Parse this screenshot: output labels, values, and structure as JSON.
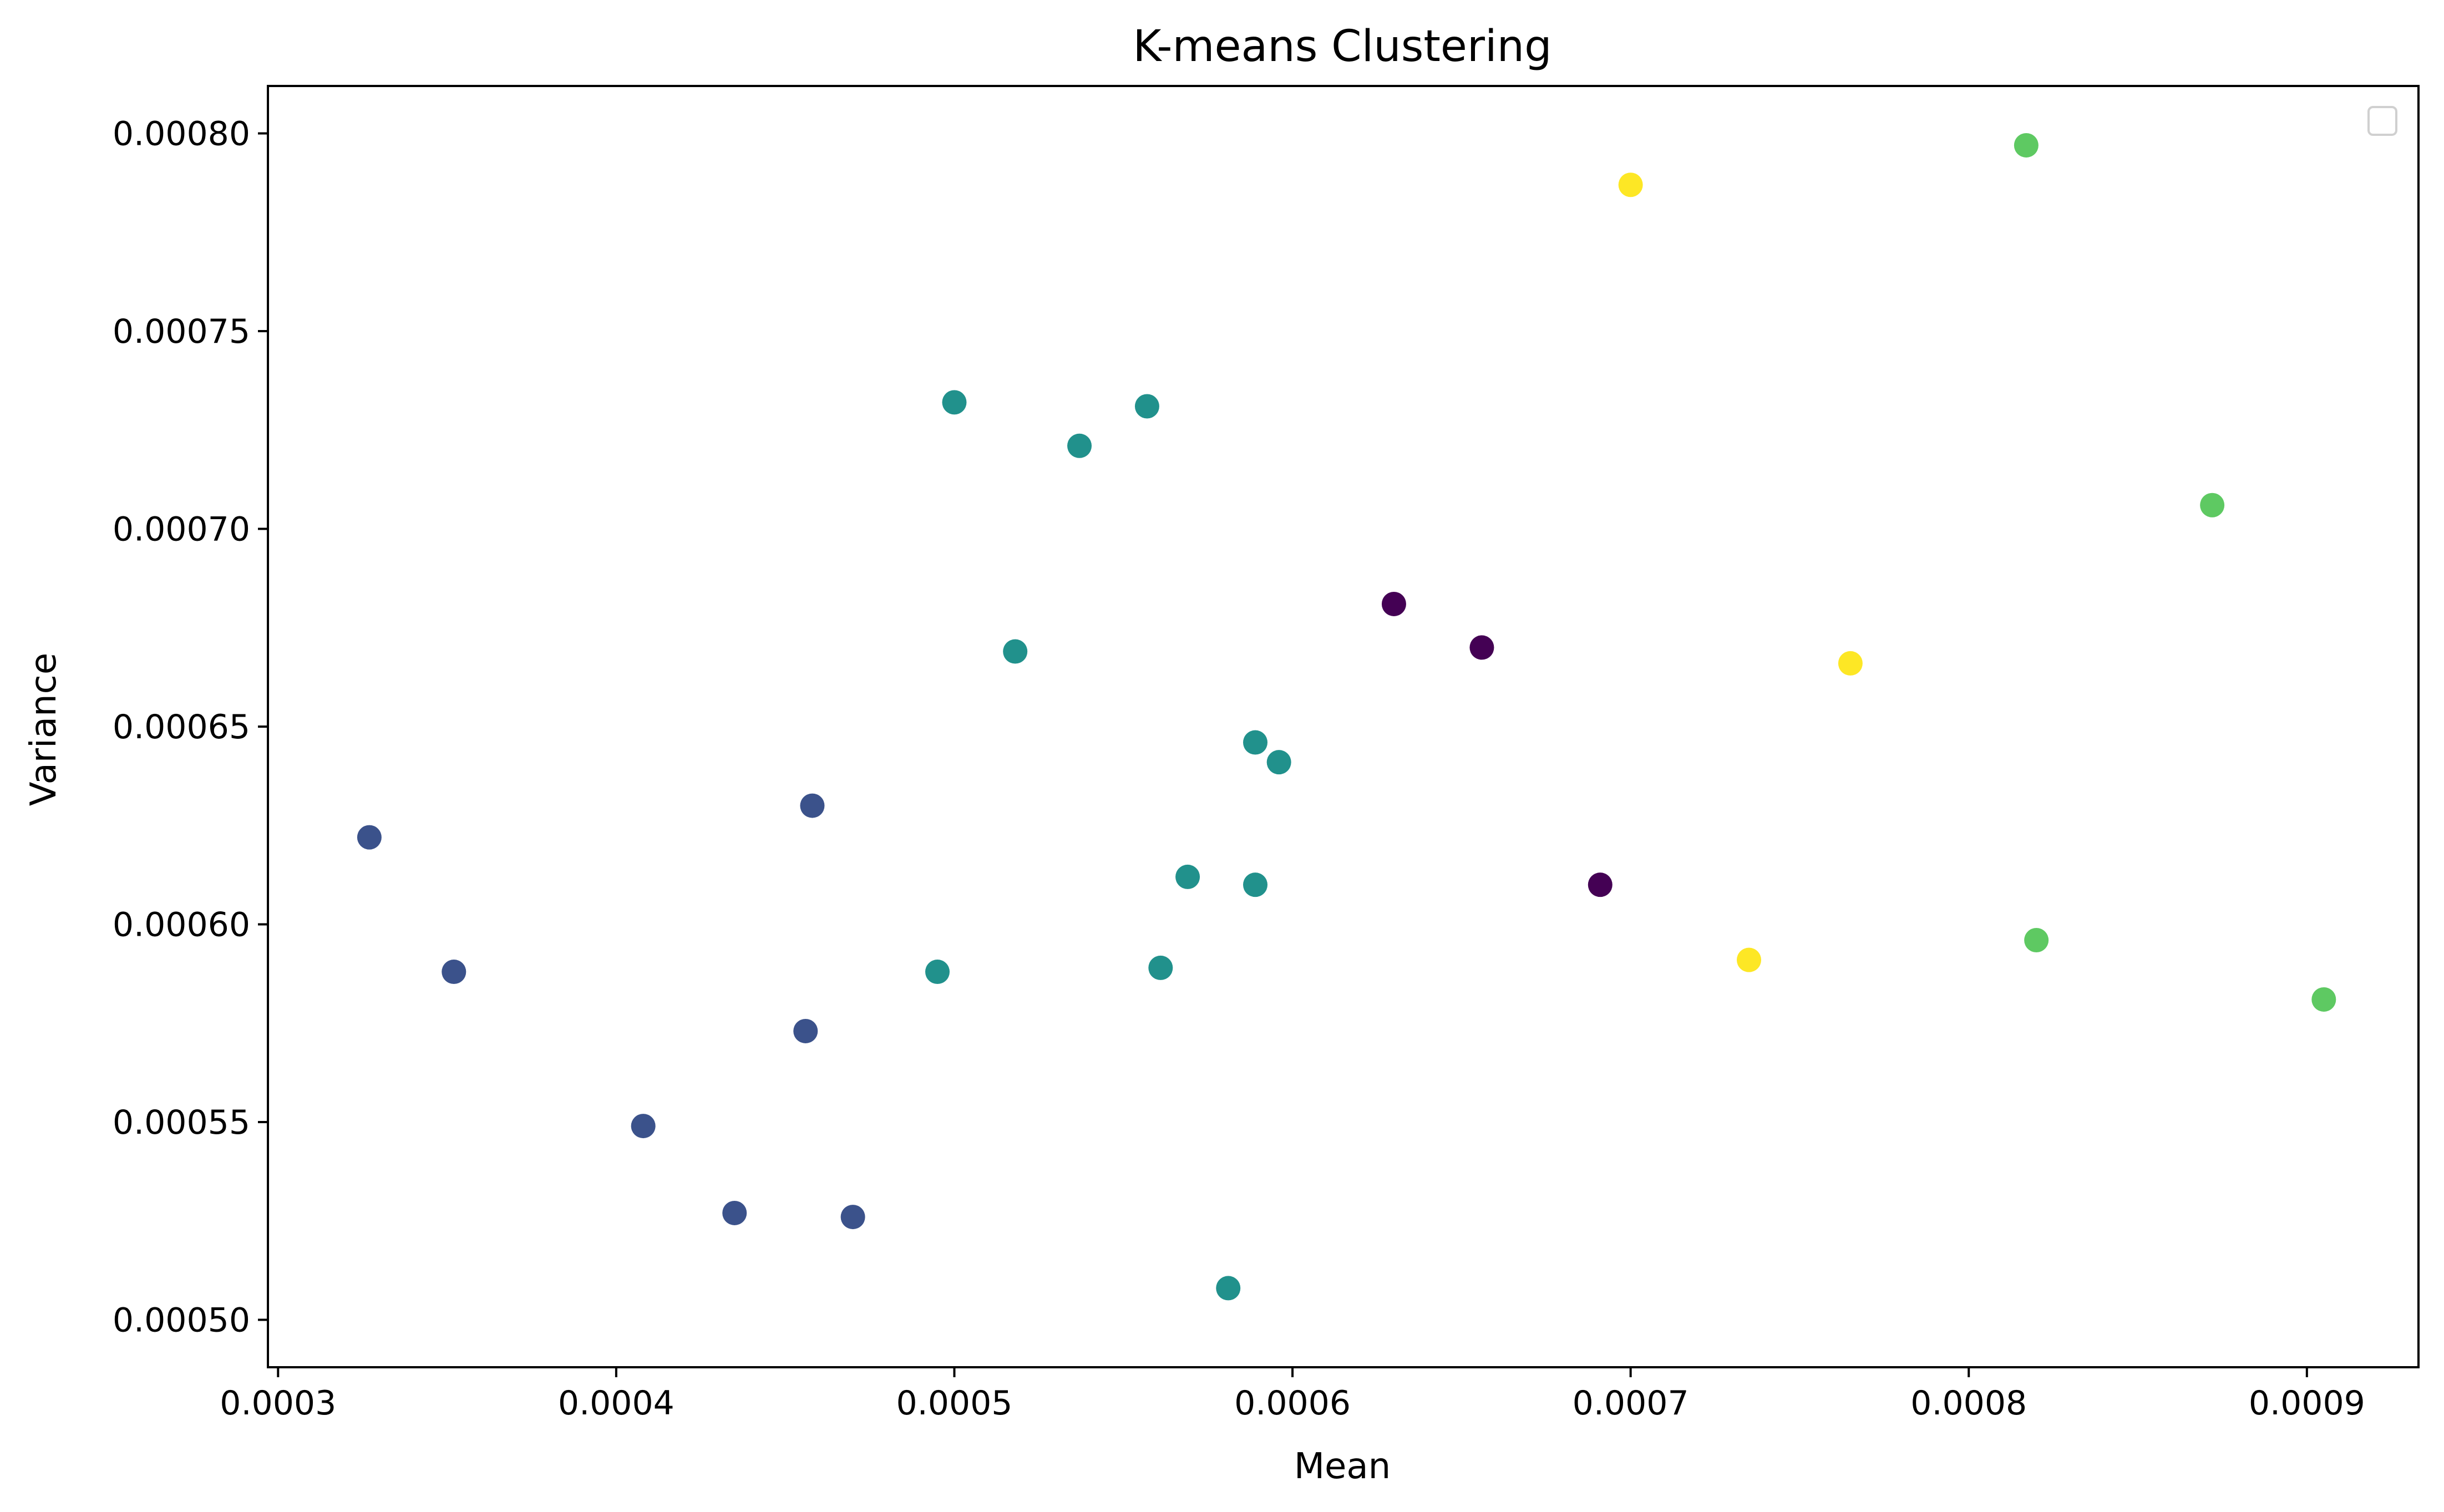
{
  "chart_data": {
    "type": "scatter",
    "title": "K-means Clustering",
    "xlabel": "Mean",
    "ylabel": "Variance",
    "xlim": [
      0.000297,
      0.000933
    ],
    "ylim": [
      0.000488,
      0.000812
    ],
    "xticks": [
      {
        "value": 0.0003,
        "label": "0.0003"
      },
      {
        "value": 0.0004,
        "label": "0.0004"
      },
      {
        "value": 0.0005,
        "label": "0.0005"
      },
      {
        "value": 0.0006,
        "label": "0.0006"
      },
      {
        "value": 0.0007,
        "label": "0.0007"
      },
      {
        "value": 0.0008,
        "label": "0.0008"
      },
      {
        "value": 0.0009,
        "label": "0.0009"
      }
    ],
    "yticks": [
      {
        "value": 0.0005,
        "label": "0.00050"
      },
      {
        "value": 0.00055,
        "label": "0.00055"
      },
      {
        "value": 0.0006,
        "label": "0.00060"
      },
      {
        "value": 0.00065,
        "label": "0.00065"
      },
      {
        "value": 0.0007,
        "label": "0.00070"
      },
      {
        "value": 0.00075,
        "label": "0.00075"
      },
      {
        "value": 0.0008,
        "label": "0.00080"
      }
    ],
    "grid": false,
    "legend": {
      "position": "top-right",
      "entries": []
    },
    "cluster_colors": [
      "#440154",
      "#3b528b",
      "#21918c",
      "#5ec962",
      "#fde725"
    ],
    "points": [
      {
        "x": 0.00063,
        "y": 0.000681,
        "cluster": 0
      },
      {
        "x": 0.000656,
        "y": 0.00067,
        "cluster": 0
      },
      {
        "x": 0.000691,
        "y": 0.00061,
        "cluster": 0
      },
      {
        "x": 0.000327,
        "y": 0.000622,
        "cluster": 1
      },
      {
        "x": 0.000352,
        "y": 0.000588,
        "cluster": 1
      },
      {
        "x": 0.000458,
        "y": 0.00063,
        "cluster": 1
      },
      {
        "x": 0.000456,
        "y": 0.000573,
        "cluster": 1
      },
      {
        "x": 0.000408,
        "y": 0.000549,
        "cluster": 1
      },
      {
        "x": 0.000435,
        "y": 0.000527,
        "cluster": 1
      },
      {
        "x": 0.00047,
        "y": 0.000526,
        "cluster": 1
      },
      {
        "x": 0.0005,
        "y": 0.000732,
        "cluster": 2
      },
      {
        "x": 0.000557,
        "y": 0.000731,
        "cluster": 2
      },
      {
        "x": 0.000537,
        "y": 0.000721,
        "cluster": 2
      },
      {
        "x": 0.000518,
        "y": 0.000669,
        "cluster": 2
      },
      {
        "x": 0.000589,
        "y": 0.000646,
        "cluster": 2
      },
      {
        "x": 0.000596,
        "y": 0.000641,
        "cluster": 2
      },
      {
        "x": 0.000569,
        "y": 0.000612,
        "cluster": 2
      },
      {
        "x": 0.000589,
        "y": 0.00061,
        "cluster": 2
      },
      {
        "x": 0.000495,
        "y": 0.000588,
        "cluster": 2
      },
      {
        "x": 0.000561,
        "y": 0.000589,
        "cluster": 2
      },
      {
        "x": 0.000581,
        "y": 0.000508,
        "cluster": 2
      },
      {
        "x": 0.000817,
        "y": 0.000797,
        "cluster": 3
      },
      {
        "x": 0.000872,
        "y": 0.000706,
        "cluster": 3
      },
      {
        "x": 0.00082,
        "y": 0.000596,
        "cluster": 3
      },
      {
        "x": 0.000905,
        "y": 0.000581,
        "cluster": 3
      },
      {
        "x": 0.0007,
        "y": 0.000787,
        "cluster": 4
      },
      {
        "x": 0.000765,
        "y": 0.000666,
        "cluster": 4
      },
      {
        "x": 0.000735,
        "y": 0.000591,
        "cluster": 4
      }
    ]
  }
}
